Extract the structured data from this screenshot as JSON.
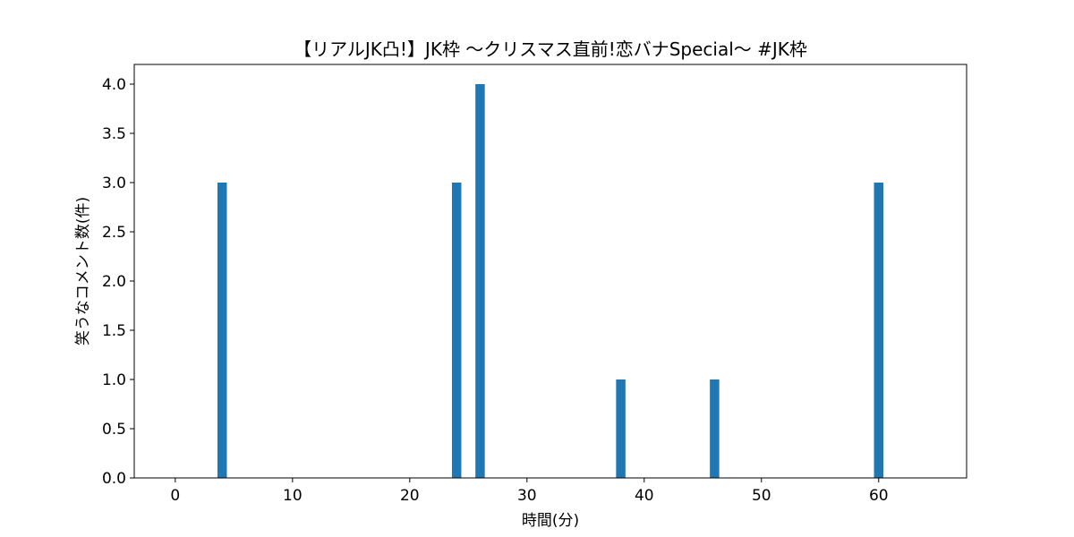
{
  "chart_data": {
    "type": "bar",
    "title": "【リアルJK凸!】JK枠 〜クリスマス直前!恋バナSpecial〜 #JK枠",
    "xlabel": "時間(分)",
    "ylabel": "笑うなコメント数(件)",
    "xlim": [
      -3.5,
      67.5
    ],
    "ylim": [
      0,
      4.2
    ],
    "xticks": [
      0,
      10,
      20,
      30,
      40,
      50,
      60
    ],
    "yticks": [
      0.0,
      0.5,
      1.0,
      1.5,
      2.0,
      2.5,
      3.0,
      3.5,
      4.0
    ],
    "xtick_labels": [
      "0",
      "10",
      "20",
      "30",
      "40",
      "50",
      "60"
    ],
    "ytick_labels": [
      "0.0",
      "0.5",
      "1.0",
      "1.5",
      "2.0",
      "2.5",
      "3.0",
      "3.5",
      "4.0"
    ],
    "bar_width": 0.8,
    "bar_color": "#1f77b4",
    "grid": false,
    "x": [
      0,
      1,
      2,
      3,
      4,
      5,
      6,
      7,
      8,
      9,
      10,
      11,
      12,
      13,
      14,
      15,
      16,
      17,
      18,
      19,
      20,
      21,
      22,
      23,
      24,
      25,
      26,
      27,
      28,
      29,
      30,
      31,
      32,
      33,
      34,
      35,
      36,
      37,
      38,
      39,
      40,
      41,
      42,
      43,
      44,
      45,
      46,
      47,
      48,
      49,
      50,
      51,
      52,
      53,
      54,
      55,
      56,
      57,
      58,
      59,
      60,
      61,
      62,
      63,
      64
    ],
    "values": [
      0,
      0,
      0,
      0,
      3,
      0,
      0,
      0,
      0,
      0,
      0,
      0,
      0,
      0,
      0,
      0,
      0,
      0,
      0,
      0,
      0,
      0,
      0,
      0,
      3,
      0,
      4,
      0,
      0,
      0,
      0,
      0,
      0,
      0,
      0,
      0,
      0,
      0,
      1,
      0,
      0,
      0,
      0,
      0,
      0,
      0,
      1,
      0,
      0,
      0,
      0,
      0,
      0,
      0,
      0,
      0,
      0,
      0,
      0,
      0,
      3,
      0,
      0,
      0,
      0
    ]
  }
}
